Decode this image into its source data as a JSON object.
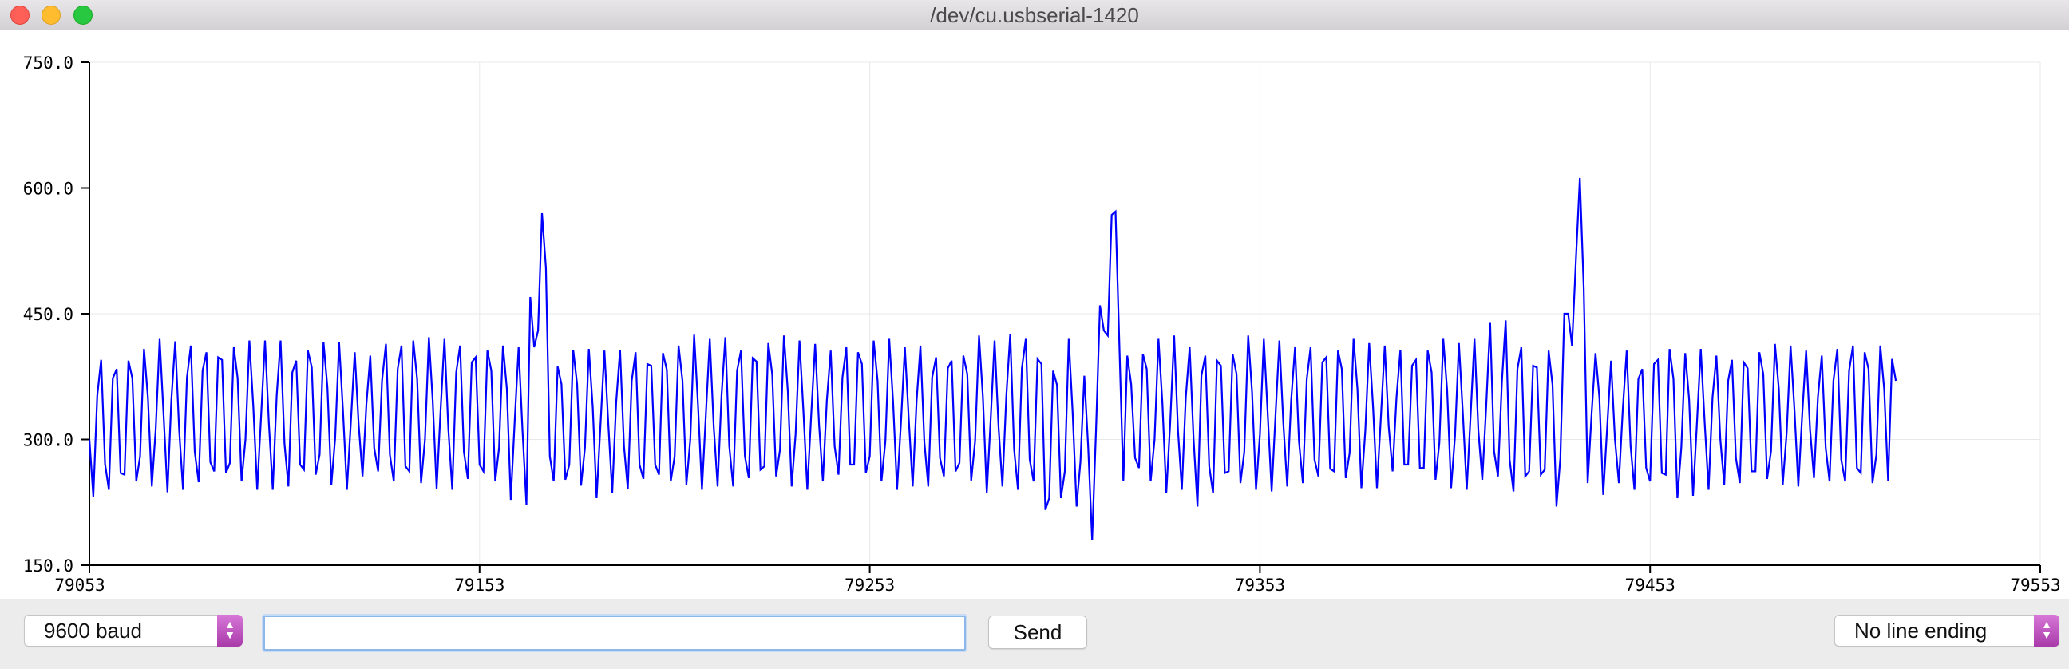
{
  "window": {
    "title": "/dev/cu.usbserial-1420",
    "controls": {
      "close": "close-icon",
      "minimize": "minimize-icon",
      "maximize": "maximize-icon"
    }
  },
  "toolbar": {
    "baud_label": "9600 baud",
    "input_value": "",
    "send_label": "Send",
    "line_ending_label": "No line ending",
    "accent_color": "#b54bb6"
  },
  "chart_data": {
    "type": "line",
    "xlim": [
      79053,
      79553
    ],
    "ylim": [
      150,
      750
    ],
    "x_ticks": [
      "79053",
      "79153",
      "79253",
      "79353",
      "79453",
      "79553"
    ],
    "y_ticks": [
      "750.0",
      "600.0",
      "450.0",
      "300.0",
      "150.0"
    ],
    "grid": true,
    "line_color": "#0000ff",
    "series": [
      {
        "x_start": 79053,
        "x_step": 1,
        "values": [
          300,
          232,
          352,
          395,
          271,
          240,
          373,
          384,
          260,
          258,
          394,
          373,
          250,
          280,
          408,
          350,
          244,
          313,
          420,
          330,
          237,
          346,
          417,
          312,
          240,
          374,
          412,
          285,
          249,
          382,
          404,
          273,
          262,
          398,
          395,
          260,
          272,
          410,
          373,
          250,
          300,
          418,
          340,
          240,
          328,
          418,
          320,
          240,
          352,
          418,
          295,
          244,
          380,
          394,
          270,
          264,
          406,
          386,
          258,
          282,
          416,
          362,
          246,
          302,
          416,
          334,
          240,
          320,
          404,
          318,
          256,
          342,
          400,
          290,
          262,
          370,
          414,
          282,
          250,
          384,
          412,
          268,
          262,
          418,
          372,
          248,
          300,
          422,
          346,
          241,
          334,
          420,
          312,
          240,
          380,
          412,
          285,
          253,
          392,
          398,
          270,
          262,
          406,
          382,
          250,
          290,
          412,
          360,
          228,
          322,
          410,
          310,
          222,
          470,
          410,
          430,
          570,
          505,
          280,
          250,
          387,
          366,
          252,
          270,
          407,
          366,
          245,
          290,
          408,
          338,
          230,
          318,
          406,
          318,
          236,
          344,
          407,
          292,
          241,
          370,
          404,
          270,
          253,
          390,
          388,
          270,
          258,
          403,
          383,
          250,
          280,
          412,
          370,
          246,
          300,
          425,
          340,
          240,
          330,
          420,
          316,
          244,
          352,
          422,
          292,
          244,
          382,
          406,
          280,
          254,
          397,
          393,
          264,
          268,
          415,
          378,
          256,
          288,
          424,
          357,
          244,
          306,
          418,
          334,
          240,
          330,
          414,
          318,
          250,
          346,
          406,
          292,
          258,
          374,
          410,
          270,
          270,
          404,
          390,
          260,
          280,
          418,
          370,
          250,
          298,
          420,
          344,
          240,
          320,
          410,
          324,
          244,
          346,
          412,
          297,
          244,
          374,
          398,
          278,
          256,
          385,
          394,
          262,
          272,
          400,
          378,
          251,
          298,
          424,
          350,
          236,
          324,
          418,
          316,
          244,
          352,
          426,
          288,
          240,
          385,
          420,
          276,
          250,
          396,
          390,
          216,
          230,
          382,
          365,
          230,
          262,
          420,
          332,
          220,
          274,
          376,
          290,
          180,
          312,
          460,
          430,
          424,
          568,
          572,
          410,
          250,
          400,
          366,
          278,
          266,
          402,
          384,
          250,
          300,
          420,
          344,
          236,
          320,
          424,
          310,
          240,
          350,
          410,
          300,
          220,
          376,
          400,
          268,
          236,
          394,
          388,
          260,
          262,
          402,
          378,
          248,
          285,
          424,
          356,
          240,
          306,
          420,
          330,
          238,
          330,
          418,
          320,
          244,
          346,
          410,
          298,
          248,
          372,
          410,
          276,
          256,
          392,
          398,
          265,
          262,
          406,
          384,
          254,
          284,
          420,
          360,
          242,
          310,
          415,
          338,
          242,
          326,
          412,
          316,
          262,
          350,
          407,
          270,
          270,
          388,
          395,
          266,
          266,
          406,
          380,
          252,
          296,
          420,
          358,
          242,
          304,
          415,
          332,
          240,
          330,
          420,
          310,
          252,
          340,
          440,
          286,
          256,
          368,
          442,
          276,
          238,
          384,
          410,
          256,
          262,
          388,
          386,
          258,
          264,
          406,
          365,
          220,
          278,
          450,
          450,
          412,
          515,
          612,
          480,
          248,
          330,
          403,
          350,
          234,
          314,
          394,
          300,
          248,
          336,
          406,
          292,
          240,
          372,
          384,
          266,
          250,
          390,
          395,
          260,
          258,
          408,
          372,
          230,
          290,
          403,
          348,
          233,
          320,
          408,
          320,
          240,
          350,
          400,
          300,
          246,
          370,
          395,
          278,
          248,
          392,
          385,
          262,
          262,
          404,
          378,
          253,
          286,
          414,
          360,
          246,
          308,
          412,
          335,
          244,
          330,
          406,
          312,
          254,
          350,
          400,
          290,
          250,
          370,
          408,
          276,
          250,
          382,
          412,
          266,
          260,
          404,
          384,
          248,
          282,
          412,
          360,
          250,
          396,
          370
        ]
      }
    ]
  }
}
